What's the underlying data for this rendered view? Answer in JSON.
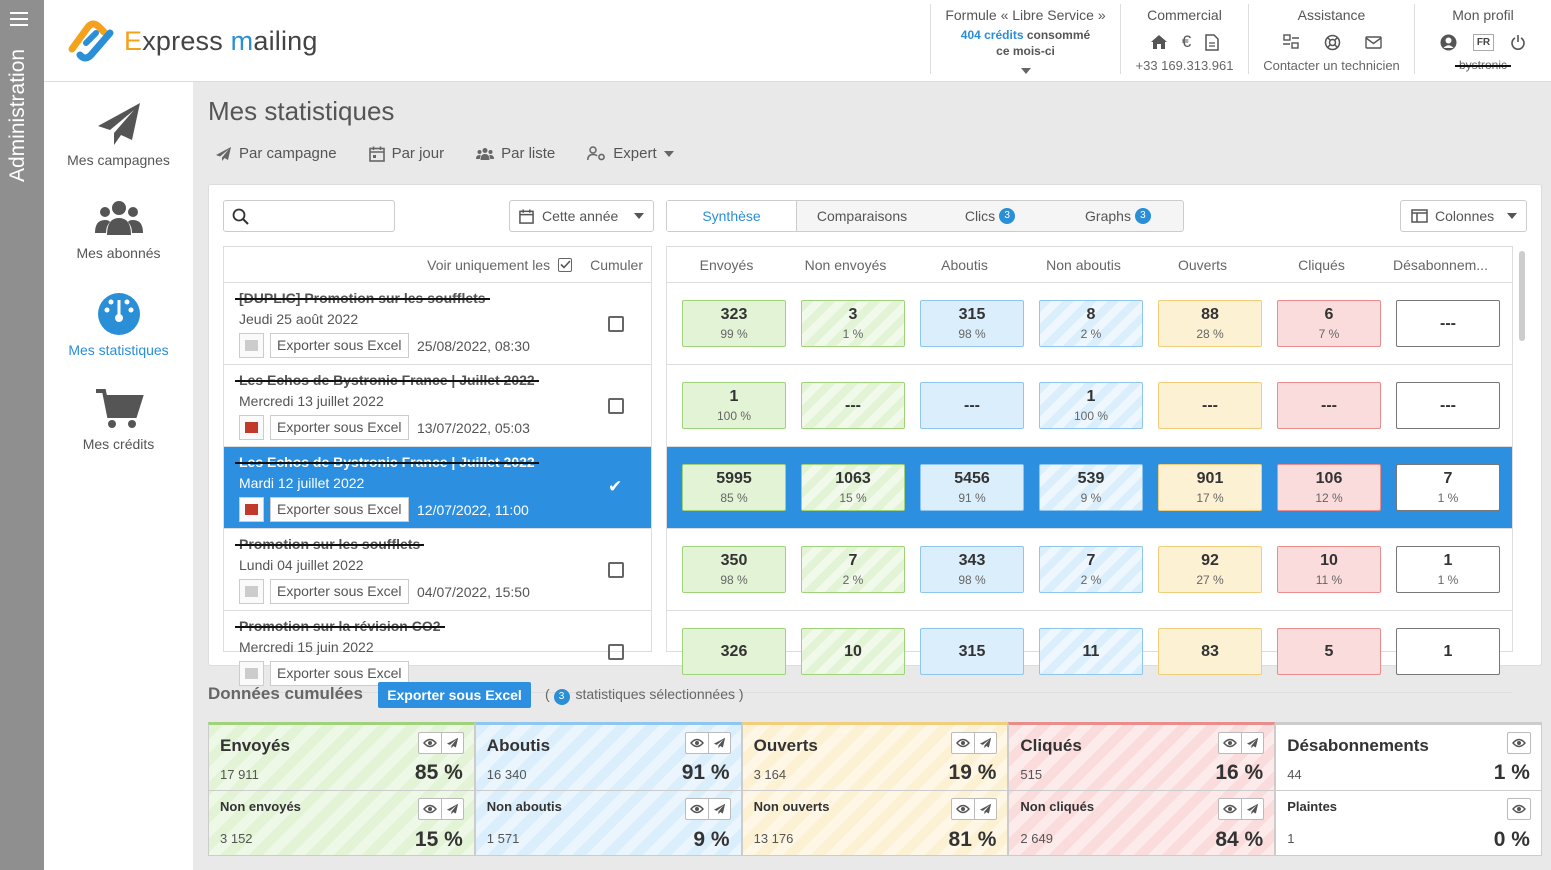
{
  "admin": {
    "label": "Administration"
  },
  "brand": {
    "e": "E",
    "xpress": "xpress ",
    "m": "m",
    "ailing": "ailing"
  },
  "header": {
    "plan": {
      "title": "Formule « Libre Service »",
      "credits_count": "404 crédits",
      "credits_rest": "consommé",
      "credits_line2": "ce mois-ci"
    },
    "commercial": {
      "title": "Commercial",
      "phone": "+33 169.313.961"
    },
    "assistance": {
      "title": "Assistance",
      "sub": "Contacter un technicien"
    },
    "profile": {
      "title": "Mon profil",
      "lang": "FR",
      "user": "bystronic"
    }
  },
  "nav": [
    {
      "label": "Mes campagnes",
      "icon": "paper-plane-icon"
    },
    {
      "label": "Mes abonnés",
      "icon": "users-icon"
    },
    {
      "label": "Mes statistiques",
      "icon": "gauge-icon",
      "active": true
    },
    {
      "label": "Mes crédits",
      "icon": "cart-icon"
    }
  ],
  "page": {
    "title": "Mes statistiques"
  },
  "toolbar": {
    "by_campaign": "Par campagne",
    "by_day": "Par jour",
    "by_list": "Par liste",
    "expert": "Expert"
  },
  "filters": {
    "search_placeholder": "",
    "period": "Cette année",
    "columns": "Colonnes"
  },
  "tabs": [
    {
      "label": "Synthèse",
      "badge": ""
    },
    {
      "label": "Comparaisons",
      "badge": ""
    },
    {
      "label": "Clics",
      "badge": "3"
    },
    {
      "label": "Graphs",
      "badge": "3"
    }
  ],
  "list": {
    "only_label": "Voir uniquement les",
    "cumulate": "Cumuler",
    "export_label": "Exporter sous Excel"
  },
  "campaigns": [
    {
      "name": "[DUPLIC] Promotion sur les soufflets",
      "date": "Jeudi 25 août 2022",
      "sent": "25/08/2022, 08:30",
      "thumb": "grey",
      "selected": false
    },
    {
      "name": "Les Echos de Bystronic France | Juillet 2022",
      "date": "Mercredi 13 juillet 2022",
      "sent": "13/07/2022, 05:03",
      "thumb": "red",
      "selected": false
    },
    {
      "name": "Les Echos de Bystronic France | Juillet 2022",
      "date": "Mardi 12 juillet 2022",
      "sent": "12/07/2022, 11:00",
      "thumb": "red",
      "selected": true
    },
    {
      "name": "Promotion sur les soufflets",
      "date": "Lundi 04 juillet 2022",
      "sent": "04/07/2022, 15:50",
      "thumb": "grey",
      "selected": false
    },
    {
      "name": "Promotion sur la révision CO2",
      "date": "Mercredi 15 juin 2022",
      "sent": "",
      "thumb": "grey",
      "selected": false
    }
  ],
  "stat_headers": [
    "Envoyés",
    "Non envoyés",
    "Aboutis",
    "Non aboutis",
    "Ouverts",
    "Cliqués",
    "Désabonnem..."
  ],
  "stat_rows": [
    [
      [
        "323",
        "99 %"
      ],
      [
        "3",
        "1 %"
      ],
      [
        "315",
        "98 %"
      ],
      [
        "8",
        "2 %"
      ],
      [
        "88",
        "28 %"
      ],
      [
        "6",
        "7 %"
      ],
      [
        "---",
        ""
      ]
    ],
    [
      [
        "1",
        "100 %"
      ],
      [
        "---",
        ""
      ],
      [
        "---",
        ""
      ],
      [
        "1",
        "100 %"
      ],
      [
        "---",
        ""
      ],
      [
        "---",
        ""
      ],
      [
        "---",
        ""
      ]
    ],
    [
      [
        "5995",
        "85 %"
      ],
      [
        "1063",
        "15 %"
      ],
      [
        "5456",
        "91 %"
      ],
      [
        "539",
        "9 %"
      ],
      [
        "901",
        "17 %"
      ],
      [
        "106",
        "12 %"
      ],
      [
        "7",
        "1 %"
      ]
    ],
    [
      [
        "350",
        "98 %"
      ],
      [
        "7",
        "2 %"
      ],
      [
        "343",
        "98 %"
      ],
      [
        "7",
        "2 %"
      ],
      [
        "92",
        "27 %"
      ],
      [
        "10",
        "11 %"
      ],
      [
        "1",
        "1 %"
      ]
    ],
    [
      [
        "326",
        ""
      ],
      [
        "10",
        ""
      ],
      [
        "315",
        ""
      ],
      [
        "11",
        ""
      ],
      [
        "83",
        ""
      ],
      [
        "5",
        ""
      ],
      [
        "1",
        ""
      ]
    ]
  ],
  "cumulated": {
    "title": "Données cumulées",
    "export": "Exporter sous Excel",
    "selected_count": "3",
    "selected_text": "statistiques sélectionnées",
    "cards": [
      {
        "title": "Envoyés",
        "count": "17 911",
        "pct": "85 %",
        "sub_title": "Non envoyés",
        "sub_count": "3 152",
        "sub_pct": "15 %",
        "color": "green"
      },
      {
        "title": "Aboutis",
        "count": "16 340",
        "pct": "91 %",
        "sub_title": "Non aboutis",
        "sub_count": "1 571",
        "sub_pct": "9 %",
        "color": "blue"
      },
      {
        "title": "Ouverts",
        "count": "3 164",
        "pct": "19 %",
        "sub_title": "Non ouverts",
        "sub_count": "13 176",
        "sub_pct": "81 %",
        "color": "yellow"
      },
      {
        "title": "Cliqués",
        "count": "515",
        "pct": "16 %",
        "sub_title": "Non cliqués",
        "sub_count": "2 649",
        "sub_pct": "84 %",
        "color": "red"
      },
      {
        "title": "Désabonnements",
        "count": "44",
        "pct": "1 %",
        "sub_title": "Plaintes",
        "sub_count": "1",
        "sub_pct": "0 %",
        "color": "white"
      }
    ]
  }
}
